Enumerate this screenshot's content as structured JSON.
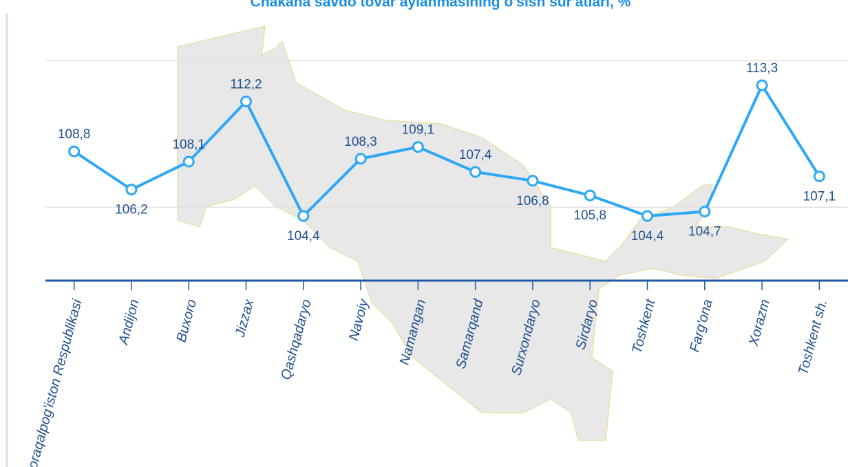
{
  "chart_data": {
    "type": "line",
    "title": "Chakana savdo tovar aylanmasining o'sish sur'atlari, %",
    "categories": [
      "Qoraqalpog'iston Respublikasi",
      "Andijon",
      "Buxoro",
      "Jizzax",
      "Qashqadaryo",
      "Navoiy",
      "Namangan",
      "Samarqand",
      "Surxondaryo",
      "Sirdaryo",
      "Toshkent",
      "Farg'ona",
      "Xorazm",
      "Toshkent sh."
    ],
    "values": [
      108.8,
      106.2,
      108.1,
      112.2,
      104.4,
      108.3,
      109.1,
      107.4,
      106.8,
      105.8,
      104.4,
      104.7,
      113.3,
      107.1
    ],
    "value_labels": [
      "108,8",
      "106,2",
      "108,1",
      "112,2",
      "104,4",
      "108,3",
      "109,1",
      "107,4",
      "106,8",
      "105,8",
      "104,4",
      "104,7",
      "113,3",
      "107,1"
    ],
    "color": "#2ea8f5",
    "ylim": [
      100,
      117
    ],
    "yticks": [
      105,
      115
    ],
    "grid": true
  }
}
